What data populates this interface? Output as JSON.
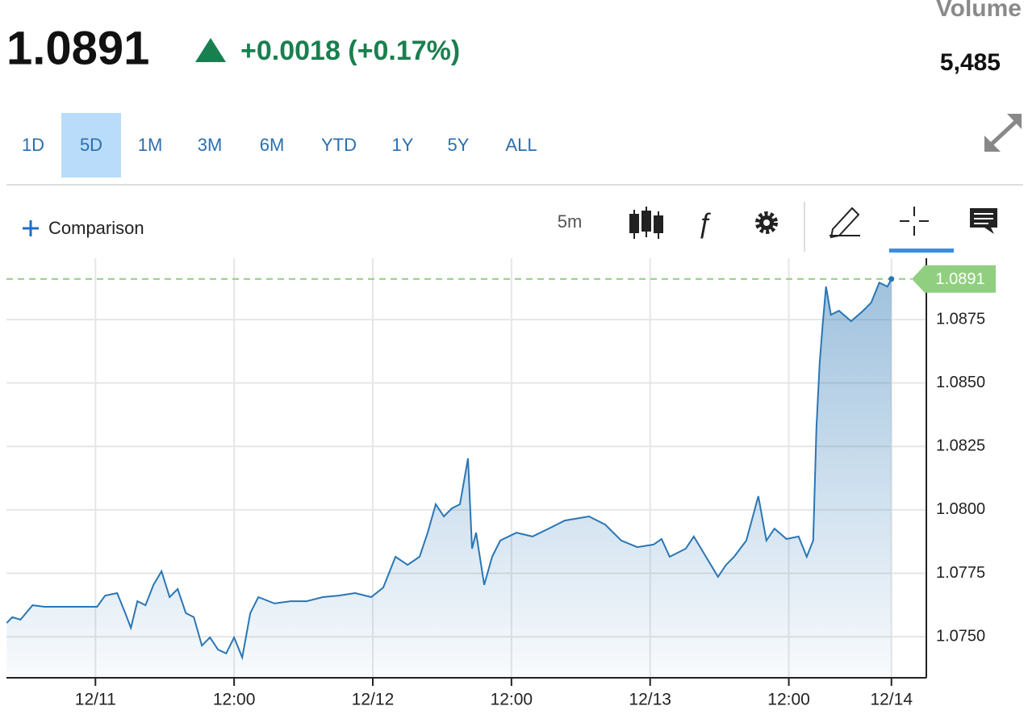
{
  "header": {
    "price": "1.0891",
    "change": "+0.0018 (+0.17%)",
    "volume_label": "Volume",
    "volume": "5,485"
  },
  "range_buttons": [
    "1D",
    "5D",
    "1M",
    "3M",
    "6M",
    "YTD",
    "1Y",
    "5Y",
    "ALL"
  ],
  "active_range": 1,
  "toolbar": {
    "comparison": "Comparison",
    "interval": "5m"
  },
  "chart_data": {
    "type": "area",
    "color": "#2a76b5",
    "last_color": "#8fcf7f",
    "x": [
      -7.68,
      -7.19,
      -6.49,
      -5.44,
      -4.4,
      -3.35,
      -1.95,
      0.14,
      0.84,
      1.88,
      2.58,
      3.07,
      3.63,
      4.33,
      5.02,
      5.72,
      6.42,
      7.12,
      7.82,
      8.51,
      9.21,
      9.91,
      10.61,
      11.31,
      12.0,
      12.7,
      13.4,
      14.1,
      15.49,
      16.89,
      18.28,
      19.68,
      21.07,
      22.47,
      23.87,
      24.91,
      25.96,
      27.01,
      28.05,
      28.75,
      29.45,
      30.15,
      30.84,
      31.54,
      32.24,
      32.59,
      32.94,
      33.64,
      34.33,
      35.03,
      36.43,
      37.82,
      39.22,
      40.61,
      42.71,
      44.1,
      45.5,
      46.89,
      48.29,
      48.99,
      49.69,
      51.08,
      51.78,
      52.83,
      53.87,
      54.57,
      55.27,
      56.32,
      57.36,
      58.06,
      58.76,
      59.8,
      60.85,
      61.55,
      62.11,
      62.39,
      62.67,
      62.94,
      63.22,
      63.64,
      64.34,
      65.39,
      66.43,
      67.13,
      67.83,
      68.53,
      68.88
    ],
    "values": [
      1.07554,
      1.07577,
      1.07567,
      1.07624,
      1.07618,
      1.07618,
      1.07618,
      1.07618,
      1.07662,
      1.07672,
      1.07593,
      1.07535,
      1.0764,
      1.07624,
      1.07704,
      1.07758,
      1.07656,
      1.07688,
      1.07593,
      1.07577,
      1.07465,
      1.07497,
      1.07449,
      1.07434,
      1.07497,
      1.07418,
      1.07593,
      1.07656,
      1.07631,
      1.0764,
      1.0764,
      1.07656,
      1.07662,
      1.07672,
      1.07656,
      1.07694,
      1.07815,
      1.07783,
      1.07815,
      1.0791,
      1.08022,
      1.07974,
      1.08006,
      1.08022,
      1.08203,
      1.07847,
      1.0791,
      1.07704,
      1.07815,
      1.07879,
      1.0791,
      1.07895,
      1.07926,
      1.07958,
      1.07974,
      1.07942,
      1.07879,
      1.07853,
      1.07863,
      1.07885,
      1.07815,
      1.07847,
      1.07895,
      1.07815,
      1.07736,
      1.07783,
      1.07815,
      1.07879,
      1.08054,
      1.07879,
      1.07926,
      1.07885,
      1.07895,
      1.07815,
      1.07879,
      1.08324,
      1.08578,
      1.08737,
      1.0888,
      1.08769,
      1.08785,
      1.08744,
      1.08785,
      1.08817,
      1.08896,
      1.0888,
      1.0891
    ],
    "last_value": 1.0891,
    "xlim": [
      -7.7,
      71.9
    ],
    "ylim": [
      1.07338,
      1.08992
    ],
    "xticks": [
      {
        "value": 0,
        "label": "12/11"
      },
      {
        "value": 12,
        "label": "12:00"
      },
      {
        "value": 24,
        "label": "12/12"
      },
      {
        "value": 36,
        "label": "12:00"
      },
      {
        "value": 48,
        "label": "12/13"
      },
      {
        "value": 60,
        "label": "12:00"
      },
      {
        "value": 68.88,
        "label": "12/14"
      }
    ],
    "yticks": [
      {
        "value": 1.075,
        "label": "1.0750"
      },
      1.0775,
      {
        "value": 1.08,
        "label": "1.0800"
      },
      1.0825,
      {
        "value": 1.085,
        "label": "1.0850"
      },
      1.0875
    ],
    "grid": true
  }
}
